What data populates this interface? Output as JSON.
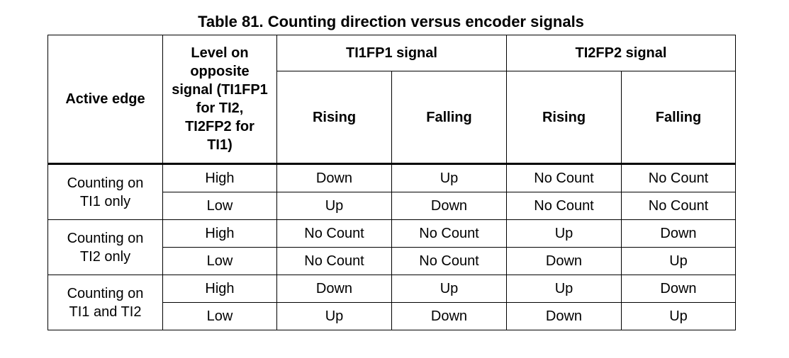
{
  "caption": "Table 81. Counting direction versus encoder signals",
  "header": {
    "active_edge": "Active edge",
    "level_lines": [
      "Level on",
      "opposite",
      "signal (TI1FP1",
      "for TI2,",
      "TI2FP2 for",
      "TI1)"
    ],
    "ti1fp1": "TI1FP1 signal",
    "ti2fp2": "TI2FP2 signal",
    "sub": [
      "Rising",
      "Falling",
      "Rising",
      "Falling"
    ]
  },
  "groups": [
    {
      "edge_lines": [
        "Counting on",
        "TI1 only"
      ],
      "rows": [
        {
          "level": "High",
          "cells": [
            "Down",
            "Up",
            "No Count",
            "No Count"
          ]
        },
        {
          "level": "Low",
          "cells": [
            "Up",
            "Down",
            "No Count",
            "No Count"
          ]
        }
      ]
    },
    {
      "edge_lines": [
        "Counting on",
        "TI2 only"
      ],
      "rows": [
        {
          "level": "High",
          "cells": [
            "No Count",
            "No Count",
            "Up",
            "Down"
          ]
        },
        {
          "level": "Low",
          "cells": [
            "No Count",
            "No Count",
            "Down",
            "Up"
          ]
        }
      ]
    },
    {
      "edge_lines": [
        "Counting on",
        "TI1 and TI2"
      ],
      "rows": [
        {
          "level": "High",
          "cells": [
            "Down",
            "Up",
            "Up",
            "Down"
          ]
        },
        {
          "level": "Low",
          "cells": [
            "Up",
            "Down",
            "Down",
            "Up"
          ]
        }
      ]
    }
  ]
}
